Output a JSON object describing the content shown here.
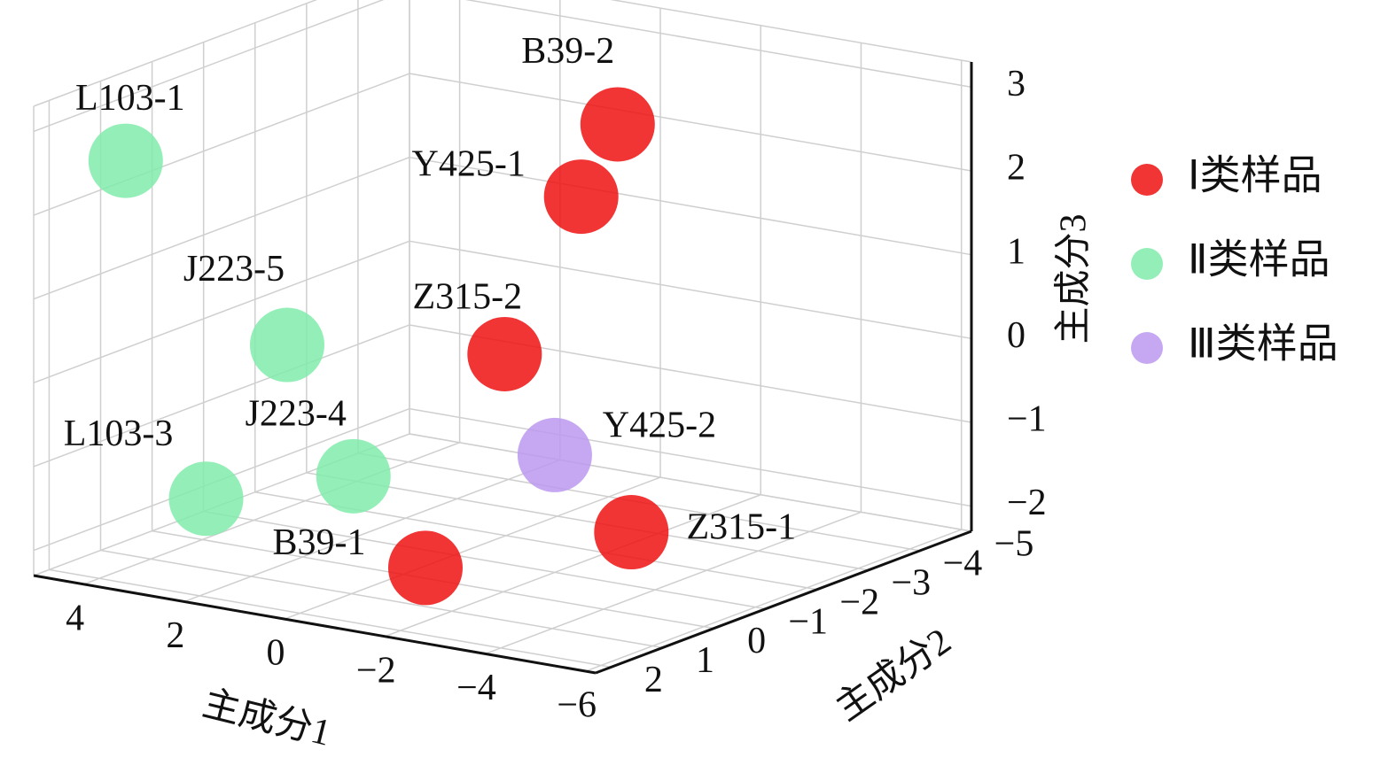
{
  "chart_data": {
    "type": "scatter3d",
    "x_label": "主成分1",
    "y_label": "主成分2",
    "z_label": "主成分3",
    "xlim": [
      5,
      -6.2
    ],
    "ylim": [
      2.3,
      -5
    ],
    "zlim": [
      -2.3,
      3.3
    ],
    "xticks": [
      4,
      2,
      0,
      {
        "value": -2,
        "label": "−2"
      },
      {
        "value": -4,
        "label": "−4"
      },
      {
        "value": -6,
        "label": "−6"
      }
    ],
    "yticks": [
      2,
      1,
      0,
      {
        "value": -1,
        "label": "−1"
      },
      {
        "value": -2,
        "label": "−2"
      },
      {
        "value": -3,
        "label": "−3"
      },
      {
        "value": -4,
        "label": "−4"
      },
      {
        "value": -5,
        "label": "−5"
      }
    ],
    "zticks": [
      {
        "value": -2,
        "label": "−2"
      },
      {
        "value": -1,
        "label": "−1"
      },
      0,
      1,
      2,
      3
    ],
    "grid": true,
    "legend": "right",
    "series": [
      {
        "name": "Ⅰ类样品",
        "color": "#ee1111",
        "labels": [
          "B39-2",
          "Y425-1",
          "Z315-2",
          "Z315-1",
          "B39-1"
        ],
        "x": [
          -1.2,
          -1.5,
          -1.0,
          -2.5,
          -2.5
        ],
        "y": [
          -3,
          -2,
          -1,
          -2,
          2
        ],
        "z": [
          2.5,
          1.9,
          0.2,
          -2,
          -1.5
        ]
      },
      {
        "name": "Ⅱ类样品",
        "color": "#80ecaa",
        "labels": [
          "L103-1",
          "J223-5",
          "J223-4",
          "L103-3"
        ],
        "x": [
          4.5,
          2,
          1.5,
          3
        ],
        "y": [
          1,
          0.3,
          -0.5,
          0.9
        ],
        "z": [
          2.4,
          0.3,
          -1.4,
          -1.5
        ]
      },
      {
        "name": "Ⅲ类样品",
        "color": "#bb99ee",
        "labels": [
          "Y425-2"
        ],
        "x": [
          -2
        ],
        "y": [
          -1
        ],
        "z": [
          -0.9
        ]
      }
    ]
  }
}
